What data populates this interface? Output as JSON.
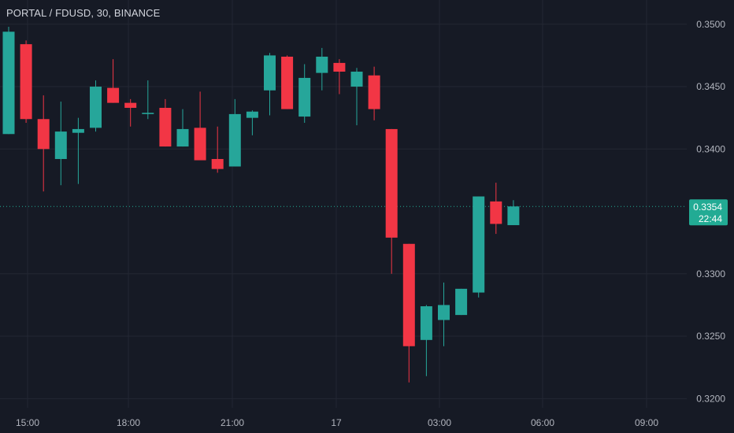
{
  "header": {
    "title": "PORTAL / FDUSD, 30, BINANCE"
  },
  "colors": {
    "background": "#161a25",
    "grid": "#232733",
    "up": "#26a69a",
    "down": "#f23645",
    "axis_text": "#b2b5be",
    "title_text": "#d1d4dc",
    "last_price_line": "#22ab94",
    "badge_bg": "#22ab94"
  },
  "chart_data": {
    "type": "candlestick",
    "title": "PORTAL / FDUSD, 30, BINANCE",
    "xlabel": "",
    "ylabel": "",
    "ylim": [
      0.3192,
      0.3515
    ],
    "grid": true,
    "x_ticks": [
      "15:00",
      "18:00",
      "21:00",
      "17",
      "03:00",
      "06:00",
      "09:00"
    ],
    "y_ticks": [
      "0.3500",
      "0.3450",
      "0.3400",
      "0.3300",
      "0.3250",
      "0.3200"
    ],
    "last_price": "0.3354",
    "countdown": "22:44",
    "candles": [
      {
        "o": 0.3412,
        "h": 0.3498,
        "l": 0.3412,
        "c": 0.3494
      },
      {
        "o": 0.3484,
        "h": 0.3487,
        "l": 0.3421,
        "c": 0.3424
      },
      {
        "o": 0.3424,
        "h": 0.3443,
        "l": 0.3366,
        "c": 0.34
      },
      {
        "o": 0.3392,
        "h": 0.3438,
        "l": 0.3371,
        "c": 0.3414
      },
      {
        "o": 0.3413,
        "h": 0.3425,
        "l": 0.3372,
        "c": 0.3416
      },
      {
        "o": 0.3417,
        "h": 0.3455,
        "l": 0.3414,
        "c": 0.345
      },
      {
        "o": 0.3449,
        "h": 0.3472,
        "l": 0.3437,
        "c": 0.3437
      },
      {
        "o": 0.3437,
        "h": 0.344,
        "l": 0.3418,
        "c": 0.3433
      },
      {
        "o": 0.3428,
        "h": 0.3455,
        "l": 0.3424,
        "c": 0.3429
      },
      {
        "o": 0.3433,
        "h": 0.344,
        "l": 0.3402,
        "c": 0.3402
      },
      {
        "o": 0.3402,
        "h": 0.3432,
        "l": 0.3402,
        "c": 0.3416
      },
      {
        "o": 0.3417,
        "h": 0.3446,
        "l": 0.3392,
        "c": 0.3391
      },
      {
        "o": 0.3392,
        "h": 0.3418,
        "l": 0.3381,
        "c": 0.3384
      },
      {
        "o": 0.3386,
        "h": 0.344,
        "l": 0.3386,
        "c": 0.3428
      },
      {
        "o": 0.3425,
        "h": 0.3431,
        "l": 0.3411,
        "c": 0.343
      },
      {
        "o": 0.3447,
        "h": 0.3477,
        "l": 0.3427,
        "c": 0.3475
      },
      {
        "o": 0.3474,
        "h": 0.3475,
        "l": 0.3432,
        "c": 0.3432
      },
      {
        "o": 0.3426,
        "h": 0.3468,
        "l": 0.3421,
        "c": 0.3457
      },
      {
        "o": 0.3461,
        "h": 0.3481,
        "l": 0.3447,
        "c": 0.3474
      },
      {
        "o": 0.3469,
        "h": 0.3472,
        "l": 0.3444,
        "c": 0.3462
      },
      {
        "o": 0.345,
        "h": 0.3465,
        "l": 0.3419,
        "c": 0.3462
      },
      {
        "o": 0.3459,
        "h": 0.3466,
        "l": 0.3423,
        "c": 0.3432
      },
      {
        "o": 0.3416,
        "h": 0.3416,
        "l": 0.33,
        "c": 0.3329
      },
      {
        "o": 0.3324,
        "h": 0.3324,
        "l": 0.3213,
        "c": 0.3242
      },
      {
        "o": 0.3247,
        "h": 0.3275,
        "l": 0.3218,
        "c": 0.3274
      },
      {
        "o": 0.3263,
        "h": 0.3293,
        "l": 0.3242,
        "c": 0.3275
      },
      {
        "o": 0.3267,
        "h": 0.3288,
        "l": 0.3267,
        "c": 0.3288
      },
      {
        "o": 0.3285,
        "h": 0.3362,
        "l": 0.3281,
        "c": 0.3362
      },
      {
        "o": 0.3358,
        "h": 0.3373,
        "l": 0.3332,
        "c": 0.334
      },
      {
        "o": 0.3339,
        "h": 0.3359,
        "l": 0.3339,
        "c": 0.3354
      }
    ]
  }
}
